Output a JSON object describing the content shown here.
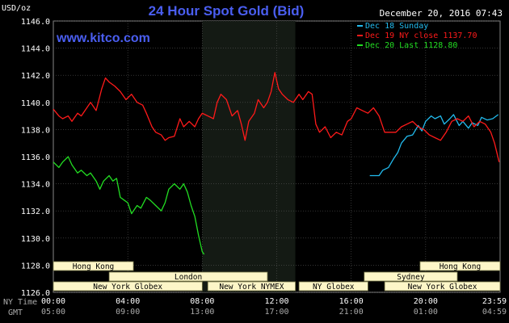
{
  "header": {
    "title": "24 Hour Spot Gold (Bid)",
    "units": "USD/oz",
    "datetime": "December 20, 2016 07:43",
    "url": "www.kitco.com"
  },
  "colors": {
    "background": "#000000",
    "plot_background": "#000000",
    "highlight_band": "#141a14",
    "grid": "#555555",
    "axis_text": "#ffffff",
    "title": "#4a5ef0",
    "url": "#4a5ef0",
    "session_bar": "#fdf6c8",
    "session_border": "#7a7a4a",
    "session_text": "#000000"
  },
  "row_labels": {
    "ny_time": "NY Time",
    "gmt": "GMT"
  },
  "chart_data": {
    "type": "line",
    "ylim": [
      1126,
      1146
    ],
    "yticks": [
      "1146.0",
      "1144.0",
      "1142.0",
      "1140.0",
      "1138.0",
      "1136.0",
      "1134.0",
      "1132.0",
      "1130.0",
      "1128.0",
      "1126.0"
    ],
    "xlim": [
      0,
      24
    ],
    "xticks_ny": [
      "00:00",
      "04:00",
      "08:00",
      "12:00",
      "16:00",
      "20:00",
      "23:59"
    ],
    "xticks_gmt": [
      "05:00",
      "09:00",
      "13:00",
      "17:00",
      "21:00",
      "01:00",
      "04:59"
    ],
    "highlight_range": [
      8,
      13
    ],
    "legend": [
      "Dec 18 Sunday",
      "Dec 19 NY close 1137.70",
      "Dec 20 Last 1128.80"
    ],
    "series": [
      {
        "name": "Dec 18 Sunday",
        "color": "#22bbee",
        "x": [
          17.0,
          17.5,
          17.7,
          18.0,
          18.3,
          18.5,
          18.7,
          19.0,
          19.3,
          19.6,
          19.8,
          20.0,
          20.3,
          20.5,
          20.8,
          21.0,
          21.3,
          21.5,
          21.8,
          22.0,
          22.3,
          22.5,
          22.8,
          23.0,
          23.3,
          23.6,
          23.9
        ],
        "y": [
          1134.6,
          1134.6,
          1135.0,
          1135.2,
          1135.9,
          1136.3,
          1137.0,
          1137.5,
          1137.6,
          1138.3,
          1137.9,
          1138.6,
          1139.0,
          1138.8,
          1139.0,
          1138.4,
          1138.8,
          1139.1,
          1138.3,
          1138.6,
          1138.1,
          1138.5,
          1138.3,
          1138.9,
          1138.7,
          1138.8,
          1139.1
        ]
      },
      {
        "name": "Dec 19 NY close 1137.70",
        "color": "#ff1a1a",
        "x": [
          0.0,
          0.3,
          0.5,
          0.8,
          1.0,
          1.3,
          1.5,
          1.8,
          2.0,
          2.3,
          2.6,
          2.8,
          3.0,
          3.3,
          3.6,
          3.9,
          4.2,
          4.5,
          4.8,
          5.0,
          5.3,
          5.5,
          5.8,
          6.0,
          6.2,
          6.5,
          6.8,
          7.0,
          7.3,
          7.6,
          7.8,
          8.0,
          8.3,
          8.6,
          8.8,
          9.0,
          9.3,
          9.6,
          9.9,
          10.1,
          10.3,
          10.5,
          10.8,
          11.0,
          11.3,
          11.5,
          11.7,
          11.9,
          12.1,
          12.3,
          12.6,
          12.9,
          13.2,
          13.4,
          13.7,
          13.9,
          14.1,
          14.3,
          14.6,
          14.9,
          15.2,
          15.5,
          15.8,
          16.0,
          16.3,
          16.6,
          16.9,
          17.2,
          17.5,
          17.8,
          18.1,
          18.4,
          18.7,
          19.0,
          19.3,
          19.6,
          19.9,
          20.2,
          20.5,
          20.8,
          21.1,
          21.4,
          21.7,
          22.0,
          22.3,
          22.6,
          22.9,
          23.2,
          23.5,
          23.7,
          23.95
        ],
        "y": [
          1139.5,
          1139.0,
          1138.8,
          1139.0,
          1138.6,
          1139.2,
          1139.0,
          1139.6,
          1140.0,
          1139.4,
          1141.0,
          1141.8,
          1141.5,
          1141.2,
          1140.8,
          1140.2,
          1140.6,
          1140.0,
          1139.8,
          1139.2,
          1138.2,
          1137.8,
          1137.6,
          1137.2,
          1137.4,
          1137.5,
          1138.8,
          1138.2,
          1138.6,
          1138.2,
          1138.8,
          1139.2,
          1139.0,
          1138.8,
          1140.0,
          1140.6,
          1140.2,
          1139.0,
          1139.4,
          1138.4,
          1137.2,
          1138.6,
          1139.2,
          1140.2,
          1139.6,
          1140.0,
          1140.8,
          1142.2,
          1141.0,
          1140.6,
          1140.2,
          1140.0,
          1140.6,
          1140.2,
          1140.8,
          1140.6,
          1138.4,
          1137.8,
          1138.2,
          1137.4,
          1137.8,
          1137.6,
          1138.6,
          1138.8,
          1139.6,
          1139.4,
          1139.2,
          1139.6,
          1139.0,
          1137.8,
          1137.8,
          1137.8,
          1138.2,
          1138.4,
          1138.6,
          1138.2,
          1138.0,
          1137.6,
          1137.4,
          1137.2,
          1137.8,
          1138.6,
          1138.8,
          1138.6,
          1139.0,
          1138.2,
          1138.6,
          1138.4,
          1137.8,
          1137.0,
          1135.6
        ]
      },
      {
        "name": "Dec 20 Last 1128.80",
        "color": "#22dd22",
        "x": [
          0.0,
          0.3,
          0.5,
          0.8,
          1.0,
          1.3,
          1.5,
          1.8,
          2.0,
          2.3,
          2.5,
          2.7,
          3.0,
          3.2,
          3.4,
          3.6,
          3.8,
          4.0,
          4.2,
          4.5,
          4.7,
          5.0,
          5.2,
          5.5,
          5.8,
          6.0,
          6.2,
          6.5,
          6.8,
          7.0,
          7.2,
          7.4,
          7.6,
          7.8,
          8.0,
          8.1
        ],
        "y": [
          1135.6,
          1135.2,
          1135.6,
          1136.0,
          1135.4,
          1134.8,
          1135.0,
          1134.6,
          1134.8,
          1134.2,
          1133.6,
          1134.2,
          1134.6,
          1134.2,
          1134.4,
          1133.0,
          1132.8,
          1132.6,
          1131.8,
          1132.4,
          1132.2,
          1133.0,
          1132.8,
          1132.4,
          1132.0,
          1132.6,
          1133.6,
          1134.0,
          1133.6,
          1134.0,
          1133.4,
          1132.4,
          1131.6,
          1130.2,
          1129.0,
          1128.8
        ]
      }
    ]
  },
  "sessions": [
    {
      "label": "Hong Kong",
      "start": 0.0,
      "end": 4.3,
      "row": 0
    },
    {
      "label": "Hong Kong",
      "start": 19.7,
      "end": 24.0,
      "row": 0
    },
    {
      "label": "London",
      "start": 3.0,
      "end": 11.5,
      "row": 1
    },
    {
      "label": "Sydney",
      "start": 16.7,
      "end": 21.7,
      "row": 1
    },
    {
      "label": "New York Globex",
      "start": 0.0,
      "end": 8.0,
      "row": 2
    },
    {
      "label": "New York NYMEX",
      "start": 8.3,
      "end": 13.0,
      "row": 2
    },
    {
      "label": "NY Globex",
      "start": 13.2,
      "end": 16.9,
      "row": 2
    },
    {
      "label": "New York Globex",
      "start": 17.8,
      "end": 24.0,
      "row": 2
    }
  ]
}
